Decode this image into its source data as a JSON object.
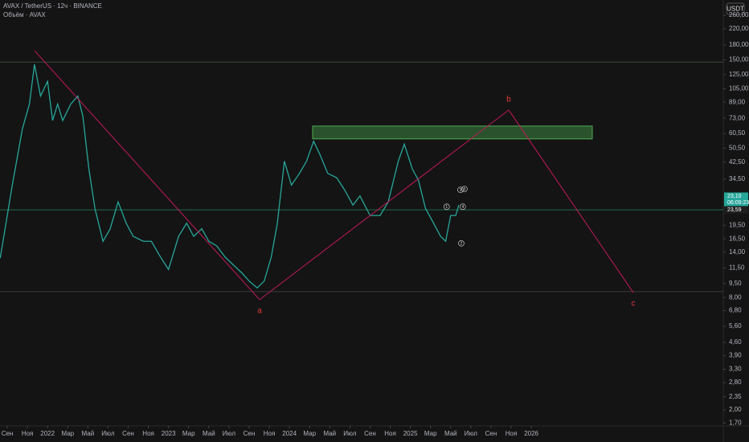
{
  "chart_data": {
    "type": "line",
    "title": "AVAX / TetherUS · 12ч · BINANCE",
    "subtitle": "Объём · AVAX",
    "currency_button": "USDT",
    "log_scale": true,
    "color": "#26a69a",
    "xlim": [
      -0.72,
      71.05
    ],
    "ylim": [
      1.64,
      314
    ],
    "xticks": [
      {
        "value": 0,
        "label": "Сен"
      },
      {
        "value": 2,
        "label": "Ноя"
      },
      {
        "value": 4,
        "label": "2022"
      },
      {
        "value": 6,
        "label": "Мар"
      },
      {
        "value": 8,
        "label": "Май"
      },
      {
        "value": 10,
        "label": "Июл"
      },
      {
        "value": 12,
        "label": "Сен"
      },
      {
        "value": 14,
        "label": "Ноя"
      },
      {
        "value": 16,
        "label": "2023"
      },
      {
        "value": 18,
        "label": "Мар"
      },
      {
        "value": 20,
        "label": "Май"
      },
      {
        "value": 22,
        "label": "Июл"
      },
      {
        "value": 24,
        "label": "Сен"
      },
      {
        "value": 26,
        "label": "Ноя"
      },
      {
        "value": 28,
        "label": "2024"
      },
      {
        "value": 30,
        "label": "Мар"
      },
      {
        "value": 32,
        "label": "Май"
      },
      {
        "value": 34,
        "label": "Июл"
      },
      {
        "value": 36,
        "label": "Сен"
      },
      {
        "value": 38,
        "label": "Ноя"
      },
      {
        "value": 40,
        "label": "2025"
      },
      {
        "value": 42,
        "label": "Мар"
      },
      {
        "value": 44,
        "label": "Май"
      },
      {
        "value": 46,
        "label": "Июл"
      },
      {
        "value": 48,
        "label": "Сен"
      },
      {
        "value": 50,
        "label": "Ноя"
      },
      {
        "value": 52,
        "label": "2026"
      }
    ],
    "yticks": [
      {
        "value": 260,
        "label": "260,00"
      },
      {
        "value": 220,
        "label": "220,00"
      },
      {
        "value": 180,
        "label": "180,00"
      },
      {
        "value": 150,
        "label": "150,00"
      },
      {
        "value": 125,
        "label": "125,00"
      },
      {
        "value": 105,
        "label": "105,00"
      },
      {
        "value": 89,
        "label": "89,00"
      },
      {
        "value": 73,
        "label": "73,00"
      },
      {
        "value": 60.5,
        "label": "60,50"
      },
      {
        "value": 50.5,
        "label": "50,50"
      },
      {
        "value": 42.5,
        "label": "42,50"
      },
      {
        "value": 34.5,
        "label": "34,50"
      },
      {
        "value": 19.5,
        "label": "19,50"
      },
      {
        "value": 16.5,
        "label": "16,50"
      },
      {
        "value": 14,
        "label": "14,00"
      },
      {
        "value": 11.5,
        "label": "11,50"
      },
      {
        "value": 9.5,
        "label": "9,50"
      },
      {
        "value": 8,
        "label": "8,00"
      },
      {
        "value": 6.8,
        "label": "6,80"
      },
      {
        "value": 5.6,
        "label": "5,60"
      },
      {
        "value": 4.6,
        "label": "4,60"
      },
      {
        "value": 3.9,
        "label": "3,90"
      },
      {
        "value": 3.3,
        "label": "3,30"
      },
      {
        "value": 2.8,
        "label": "2,80"
      },
      {
        "value": 2.35,
        "label": "2,35"
      },
      {
        "value": 2,
        "label": "2,00"
      },
      {
        "value": 1.7,
        "label": "1,70"
      }
    ],
    "x": [
      -0.7,
      0.5,
      1.5,
      2.2,
      2.7,
      3.3,
      4,
      4.5,
      5,
      5.5,
      6.3,
      7,
      7.5,
      8.1,
      8.7,
      9.5,
      10.2,
      11,
      11.8,
      12.5,
      13.5,
      14.3,
      15.2,
      16,
      17,
      17.8,
      18.5,
      19.3,
      20,
      20.8,
      21.6,
      22.4,
      23.3,
      24,
      24.8,
      25.5,
      26.2,
      26.8,
      27.5,
      28.2,
      29,
      29.7,
      30.4,
      31,
      31.8,
      32.7,
      33.5,
      34.3,
      35,
      36,
      37,
      37.8,
      38.8,
      39.4,
      40.2,
      40.8,
      41.5,
      42.2,
      43,
      43.5,
      44,
      44.5,
      44.8
    ],
    "values": [
      13,
      32,
      64,
      87,
      142,
      96,
      115,
      71,
      87,
      71,
      87,
      96,
      75,
      39,
      24,
      16,
      18.6,
      26,
      20,
      17,
      16,
      16,
      13.2,
      11.3,
      17,
      20,
      17,
      18.7,
      16,
      15.1,
      13.2,
      12,
      10.8,
      9.8,
      9,
      9.8,
      13.2,
      20,
      43,
      32,
      37,
      43,
      55,
      47,
      37,
      35,
      30,
      25,
      28,
      22,
      22,
      26,
      43,
      53,
      39,
      34,
      24,
      20.5,
      17,
      16,
      22,
      22,
      25
    ],
    "levels": [
      146,
      23.59,
      8.6
    ],
    "price_labels": [
      "23,10",
      "06:09:23",
      "23,59"
    ],
    "wave": {
      "x": [
        2.71,
        25.04,
        49.76,
        62.12
      ],
      "values": [
        168,
        7.79,
        80.8,
        8.5
      ],
      "labels": [
        null,
        "a",
        "b",
        "c"
      ]
    },
    "zone": {
      "x": [
        30.3,
        58.05
      ],
      "values": [
        56.6,
        66.3
      ]
    },
    "counts": {
      "labels": [
        "1",
        "2",
        "3",
        "4",
        "5"
      ],
      "x": [
        43.6,
        45.05,
        44.97,
        45.2,
        45.37
      ],
      "values": [
        24.5,
        15.6,
        30.2,
        24.5,
        30.5
      ]
    }
  }
}
